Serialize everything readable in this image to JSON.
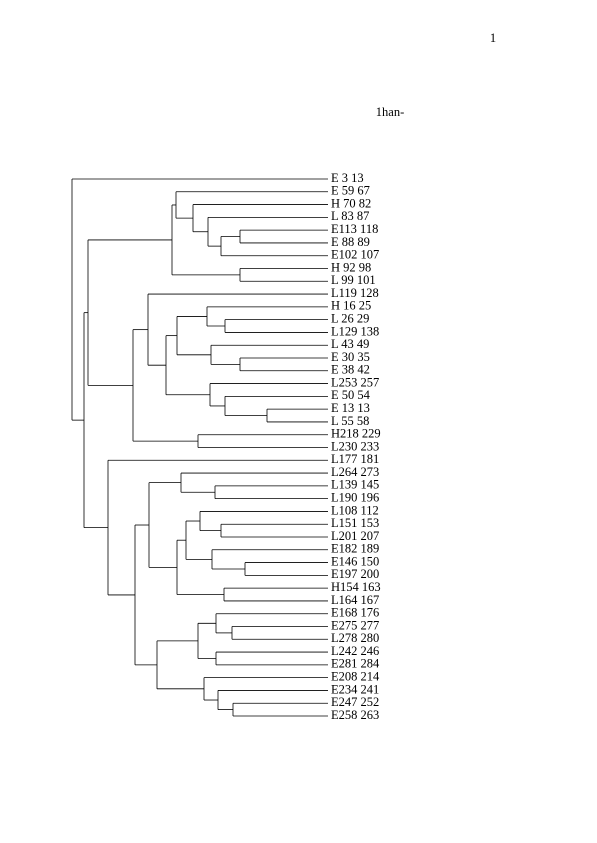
{
  "page_number": "1",
  "title": "1han-",
  "leaves": [
    "E 3 13",
    "E 59 67",
    "H 70 82",
    "L 83 87",
    "E113 118",
    "E 88 89",
    "E102 107",
    "H 92 98",
    "L 99 101",
    "L119 128",
    "H 16 25",
    "L 26 29",
    "L129 138",
    "L 43 49",
    "E 30 35",
    "E 38 42",
    "L253 257",
    "E 50 54",
    "E 13 13",
    "L 55 58",
    "H218 229",
    "L230 233",
    "L177 181",
    "L264 273",
    "L139 145",
    "L190 196",
    "L108 112",
    "L151 153",
    "L201 207",
    "E182 189",
    "E146 150",
    "E197 200",
    "H154 163",
    "L164 167",
    "E168 176",
    "E275 277",
    "L278 280",
    "L242 246",
    "E281 284",
    "E208 214",
    "E234 241",
    "E247 252",
    "E258 263"
  ]
}
